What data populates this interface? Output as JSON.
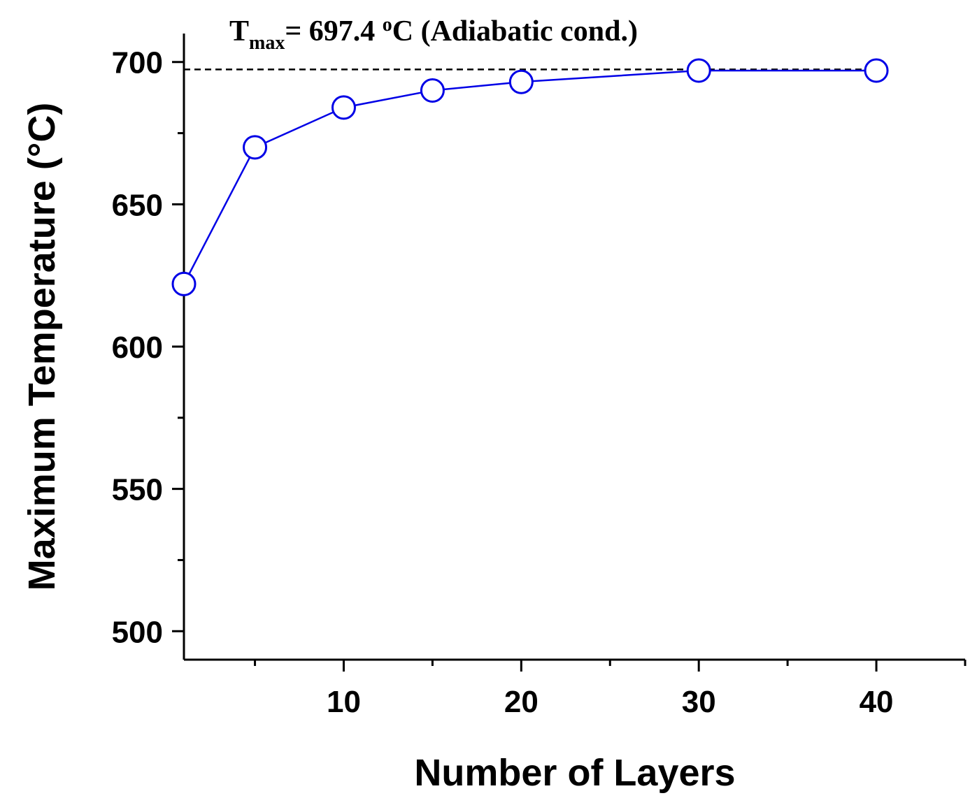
{
  "chart_data": {
    "type": "line",
    "annotation": {
      "main": "T",
      "sub": "max",
      "rest": "= 697.4 ",
      "sup": "o",
      "end": "C (Adiabatic cond.)"
    },
    "reference_line": 697.4,
    "x_label": "Number of Layers",
    "y_label": "Maximum Temperature (°C)",
    "x": [
      1,
      5,
      10,
      15,
      20,
      30,
      40
    ],
    "series": [
      {
        "name": "Maximum Temperature",
        "color": "#0000e6",
        "values": [
          622,
          670,
          684,
          690,
          693,
          697,
          697
        ]
      }
    ],
    "xlim": [
      1,
      45
    ],
    "ylim": [
      490,
      710
    ],
    "xticks": [
      10,
      20,
      30,
      40
    ],
    "yticks": [
      500,
      550,
      600,
      650,
      700
    ],
    "xminorticks": [
      5,
      15,
      25,
      35,
      45
    ],
    "yminorticks": [
      525,
      575,
      625,
      675
    ],
    "grid": false
  }
}
